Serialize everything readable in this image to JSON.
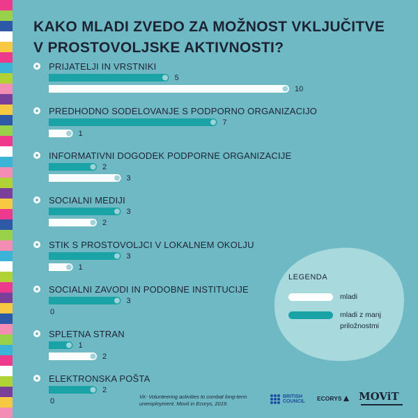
{
  "title": {
    "line1": "KAKO MLADI ZVEDO ZA MOŽNOST VKLJUČITVE",
    "line2": "V PROSTOVOLJSKE AKTIVNOSTI?"
  },
  "colors": {
    "background": "#6fb9c5",
    "mladi": "#ffffff",
    "mladi_manj": "#1aa3a6",
    "title_text": "#1c2434",
    "legend_blob": "#a8d9dd"
  },
  "stripe_colors": [
    "#ee3a8c",
    "#9ad14b",
    "#2d59a6",
    "#ffffff",
    "#f7c942",
    "#ee3a8c",
    "#3cb4d8",
    "#b1d235",
    "#f48db4",
    "#7a3f98",
    "#f7c942",
    "#2d59a6",
    "#9ad14b",
    "#ee3a8c",
    "#ffffff",
    "#3cb4d8",
    "#f48db4",
    "#b1d235",
    "#7a3f98",
    "#f7c942",
    "#ee3a8c",
    "#2d59a6",
    "#9ad14b",
    "#f48db4",
    "#3cb4d8",
    "#ffffff",
    "#b1d235",
    "#ee3a8c",
    "#7a3f98",
    "#f7c942",
    "#2d59a6",
    "#f48db4",
    "#9ad14b",
    "#3cb4d8",
    "#ee3a8c",
    "#ffffff",
    "#b1d235",
    "#7a3f98",
    "#f7c942",
    "#f48db4"
  ],
  "chart_data": {
    "type": "bar",
    "orientation": "horizontal",
    "categories": [
      "PRIJATELJI IN VRSTNIKI",
      "PREDHODNO SODELOVANJE S PODPORNO ORGANIZACIJO",
      "INFORMATIVNI DOGODEK PODPORNE ORGANIZACIJE",
      "SOCIALNI MEDIJI",
      "STIK S PROSTOVOLJCI V LOKALNEM OKOLJU",
      "SOCIALNI ZAVODI IN PODOBNE INSTITUCIJE",
      "SPLETNA STRAN",
      "ELEKTRONSKA POŠTA"
    ],
    "series": [
      {
        "name": "mladi z manj priložnostmi",
        "values": [
          5,
          7,
          2,
          3,
          3,
          3,
          1,
          2
        ]
      },
      {
        "name": "mladi",
        "values": [
          10,
          1,
          3,
          2,
          1,
          0,
          2,
          0
        ]
      }
    ],
    "xlim": [
      0,
      10
    ],
    "grid": false,
    "legend": {
      "title": "LEGENDA",
      "placement": "bottom-right",
      "items": [
        {
          "label": "mladi",
          "series": "mladi"
        },
        {
          "label": "mladi z manj priložnostmi",
          "series": "mladi z manj priložnostmi"
        }
      ]
    }
  },
  "source": "Vir: Volunteering activities to combat long-term unemployment. Movit in Ecorys, 2019.",
  "logos": {
    "british_council": [
      "BRITISH",
      "COUNCIL"
    ],
    "ecorys": "ECORYS",
    "movit": "MOViT"
  }
}
